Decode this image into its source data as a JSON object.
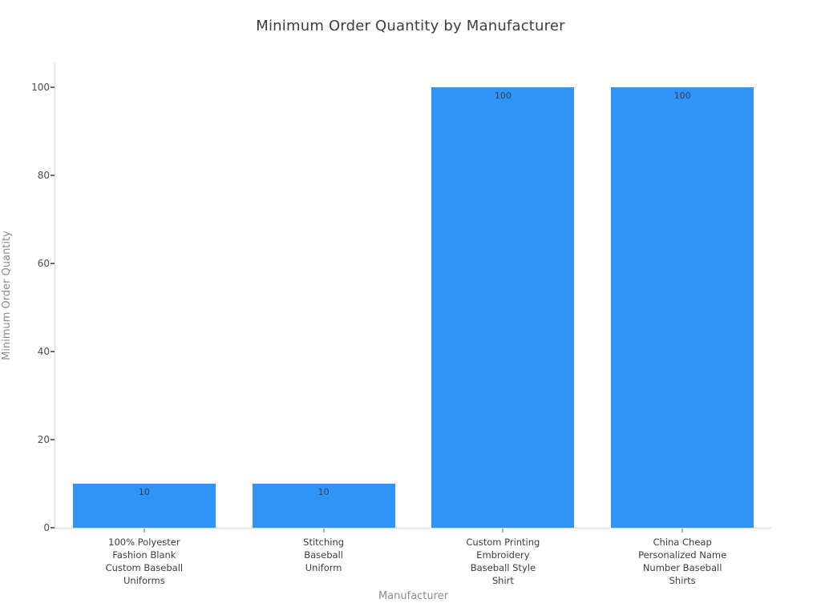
{
  "chart_data": {
    "type": "bar",
    "title": "Minimum Order Quantity by Manufacturer",
    "xlabel": "Manufacturer",
    "ylabel": "Minimum Order Quantity",
    "categories": [
      "100% Polyester Fashion Blank Custom Baseball Uniforms",
      "Stitching Baseball Uniform",
      "Custom Printing Embroidery Baseball Style Shirt",
      "China Cheap Personalized Name Number Baseball Shirts"
    ],
    "category_lines": [
      [
        "100% Polyester",
        "Fashion Blank",
        "Custom Baseball",
        "Uniforms"
      ],
      [
        "Stitching",
        "Baseball",
        "Uniform"
      ],
      [
        "Custom Printing",
        "Embroidery",
        "Baseball Style",
        "Shirt"
      ],
      [
        "China Cheap",
        "Personalized Name",
        "Number Baseball",
        "Shirts"
      ]
    ],
    "values": [
      10,
      10,
      100,
      100
    ],
    "bar_value_labels": [
      "10",
      "10",
      "100",
      "100"
    ],
    "yticks": [
      0,
      20,
      40,
      60,
      80,
      100
    ],
    "ylim": [
      0,
      100
    ],
    "grid": false,
    "legend": null,
    "colors": {
      "bar": "#3093f6",
      "title": "#3d3d3d",
      "tick_label": "#4c4c4c",
      "category_label": "#3c3c3c",
      "axis_title": "#8c8c8c",
      "axis_line": "#d9d9d9",
      "bar_value_label": "#2a3f5f",
      "background": "#ffffff"
    }
  }
}
